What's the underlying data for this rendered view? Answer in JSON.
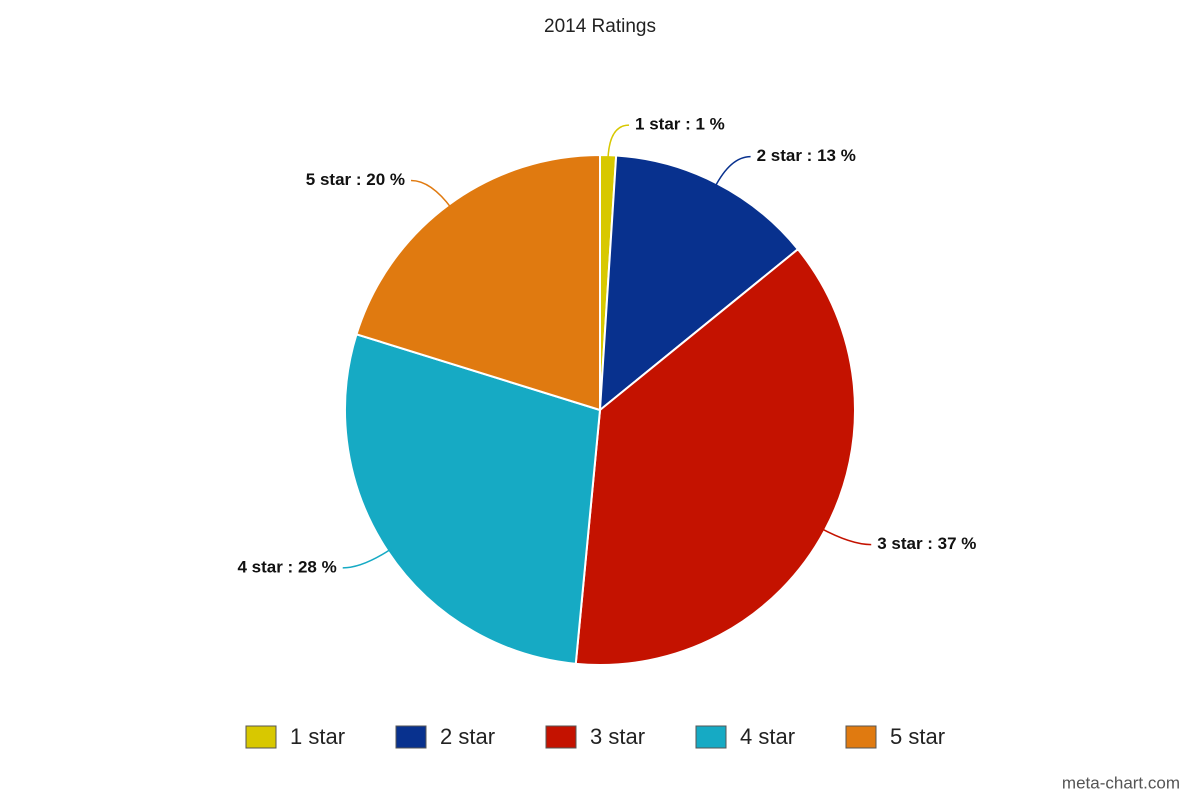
{
  "chart_data": {
    "type": "pie",
    "title": "2014 Ratings",
    "categories": [
      "1 star",
      "2 star",
      "3 star",
      "4 star",
      "5 star"
    ],
    "values": [
      1,
      13,
      37,
      28,
      20
    ],
    "value_labels": [
      "1 star : 1 %",
      "2 star : 13 %",
      "3 star : 37 %",
      "4 star : 28 %",
      "5 star : 20 %"
    ],
    "colors": [
      "#d8c800",
      "#08318e",
      "#c41200",
      "#16aac4",
      "#e07a10"
    ],
    "legend": "bottom",
    "credit": "meta-chart.com"
  }
}
